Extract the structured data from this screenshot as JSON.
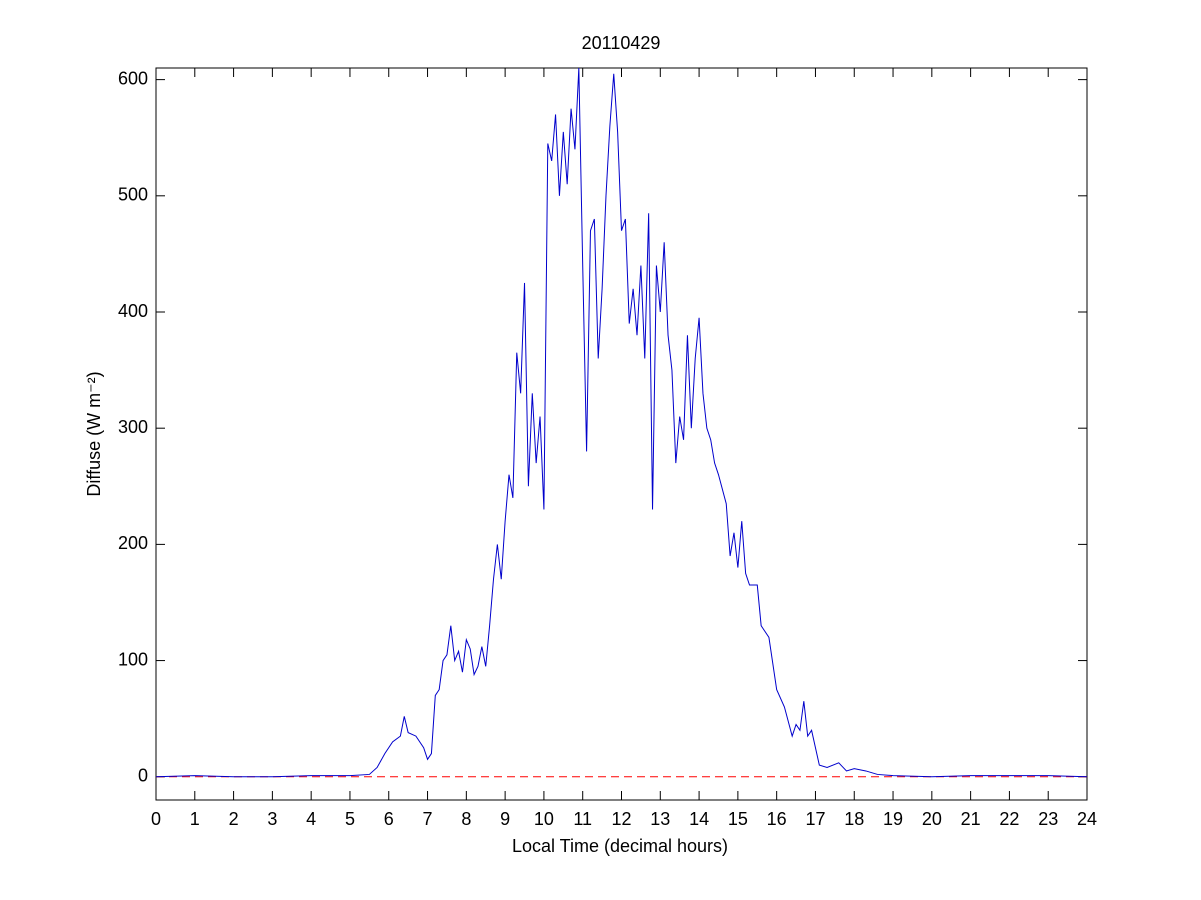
{
  "chart_data": {
    "type": "line",
    "title": "20110429",
    "x_label": "Local Time (decimal hours)",
    "y_label": "Diffuse (W m⁻²)",
    "x": [
      0,
      1,
      2,
      3,
      4,
      5,
      5.5,
      5.7,
      5.9,
      6.1,
      6.3,
      6.4,
      6.5,
      6.7,
      6.9,
      7.0,
      7.1,
      7.2,
      7.3,
      7.4,
      7.5,
      7.6,
      7.7,
      7.8,
      7.9,
      8.0,
      8.1,
      8.2,
      8.3,
      8.4,
      8.5,
      8.6,
      8.7,
      8.8,
      8.9,
      9.0,
      9.1,
      9.2,
      9.3,
      9.4,
      9.5,
      9.6,
      9.7,
      9.8,
      9.9,
      10.0,
      10.1,
      10.2,
      10.3,
      10.4,
      10.5,
      10.6,
      10.7,
      10.8,
      10.9,
      11.0,
      11.1,
      11.2,
      11.3,
      11.4,
      11.5,
      11.6,
      11.7,
      11.8,
      11.9,
      12.0,
      12.1,
      12.2,
      12.3,
      12.4,
      12.5,
      12.6,
      12.7,
      12.8,
      12.9,
      13.0,
      13.1,
      13.2,
      13.3,
      13.4,
      13.5,
      13.6,
      13.7,
      13.8,
      13.9,
      14.0,
      14.1,
      14.2,
      14.3,
      14.4,
      14.5,
      14.7,
      14.8,
      14.9,
      15.0,
      15.1,
      15.2,
      15.3,
      15.5,
      15.6,
      15.8,
      16.0,
      16.2,
      16.4,
      16.5,
      16.6,
      16.7,
      16.8,
      16.9,
      17.0,
      17.1,
      17.3,
      17.6,
      17.8,
      18.0,
      18.3,
      18.6,
      19.0,
      20,
      21,
      22,
      23,
      24
    ],
    "series": [
      {
        "color": "#0000cc",
        "values": [
          0,
          1,
          0,
          0,
          1,
          1,
          2,
          8,
          20,
          30,
          35,
          52,
          38,
          35,
          25,
          15,
          20,
          70,
          75,
          100,
          105,
          130,
          100,
          108,
          90,
          118,
          110,
          88,
          95,
          112,
          95,
          130,
          170,
          200,
          170,
          220,
          260,
          240,
          365,
          330,
          425,
          250,
          330,
          270,
          310,
          230,
          545,
          530,
          570,
          500,
          555,
          510,
          575,
          540,
          610,
          440,
          280,
          470,
          480,
          360,
          420,
          500,
          560,
          605,
          555,
          470,
          480,
          390,
          420,
          380,
          440,
          360,
          485,
          230,
          440,
          400,
          460,
          380,
          350,
          270,
          310,
          290,
          380,
          300,
          360,
          395,
          330,
          300,
          290,
          270,
          260,
          235,
          190,
          210,
          180,
          220,
          175,
          165,
          165,
          130,
          120,
          75,
          60,
          35,
          45,
          40,
          65,
          35,
          40,
          25,
          10,
          8,
          12,
          5,
          7,
          5,
          2,
          1,
          0,
          1,
          1,
          1,
          0
        ]
      }
    ],
    "reference_line": {
      "value": 0,
      "color": "#ff0000",
      "style": "dashed"
    },
    "xlim": [
      0,
      24
    ],
    "ylim": [
      -20,
      610
    ],
    "xticks": [
      0,
      1,
      2,
      3,
      4,
      5,
      6,
      7,
      8,
      9,
      10,
      11,
      12,
      13,
      14,
      15,
      16,
      17,
      18,
      19,
      20,
      21,
      22,
      23,
      24
    ],
    "yticks": [
      0,
      100,
      200,
      300,
      400,
      500,
      600
    ],
    "grid": false
  }
}
